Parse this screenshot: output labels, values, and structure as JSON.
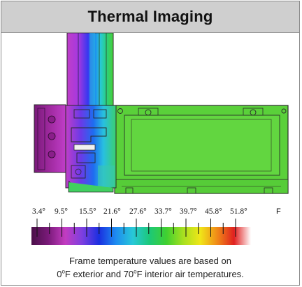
{
  "header": {
    "title": "Thermal Imaging"
  },
  "scale": {
    "ticks": [
      "3.4°",
      "9.5°",
      "15.5°",
      "21.6°",
      "27.6°",
      "33.7°",
      "39.7°",
      "45.8°",
      "51.8°"
    ],
    "unit": "F",
    "gradient_colors": [
      "#4a0f48",
      "#7a1a7a",
      "#c23cc0",
      "#7d3fe0",
      "#1a2fe0",
      "#1e8cf0",
      "#28c8d8",
      "#1cc878",
      "#40d030",
      "#a8e020",
      "#f0e618",
      "#f08a18",
      "#e02020",
      "#ffffff"
    ]
  },
  "caption": {
    "line1": "Frame temperature values are based on",
    "line2_a": "0",
    "line2_b": "o",
    "line2_c": "F exterior and 70",
    "line2_d": "o",
    "line2_e": "F interior air temperatures."
  }
}
